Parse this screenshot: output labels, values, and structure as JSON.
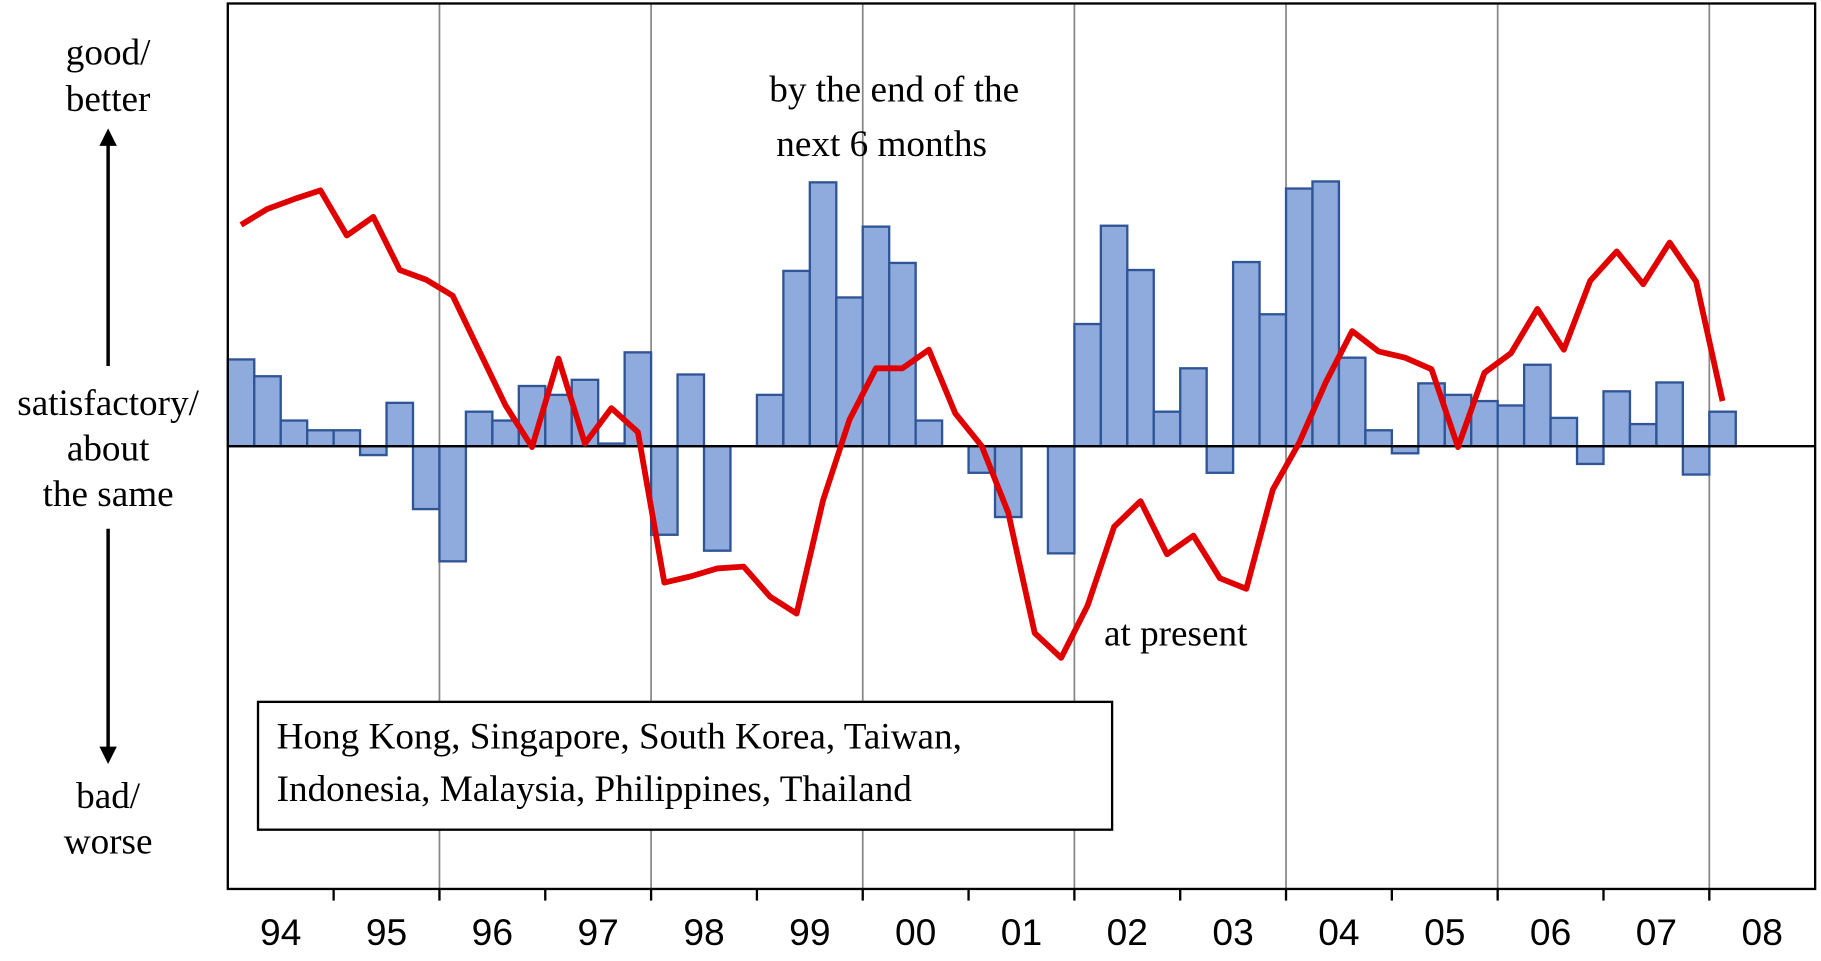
{
  "chart_data": {
    "type": "combo",
    "x": [
      1994.125,
      1994.375,
      1994.625,
      1994.875,
      1995.125,
      1995.375,
      1995.625,
      1995.875,
      1996.125,
      1996.375,
      1996.625,
      1996.875,
      1997.125,
      1997.375,
      1997.625,
      1997.875,
      1998.125,
      1998.375,
      1998.625,
      1998.875,
      1999.125,
      1999.375,
      1999.625,
      1999.875,
      2000.125,
      2000.375,
      2000.625,
      2000.875,
      2001.125,
      2001.375,
      2001.625,
      2001.875,
      2002.125,
      2002.375,
      2002.625,
      2002.875,
      2003.125,
      2003.375,
      2003.625,
      2003.875,
      2004.125,
      2004.375,
      2004.625,
      2004.875,
      2005.125,
      2005.375,
      2005.625,
      2005.875,
      2006.125,
      2006.375,
      2006.625,
      2006.875,
      2007.125,
      2007.375,
      2007.625,
      2007.875,
      2008.125,
      2008.375,
      2008.625,
      2008.875
    ],
    "series": [
      {
        "type": "bar",
        "color": "#8faadc",
        "edge_color": "#2f5597",
        "values": [
          9.8,
          7.9,
          2.9,
          1.8,
          1.8,
          -1.0,
          4.9,
          -7.1,
          -13.0,
          3.9,
          2.9,
          6.8,
          5.8,
          7.5,
          0.3,
          10.6,
          -10.0,
          8.1,
          -11.8,
          null,
          5.8,
          19.8,
          29.8,
          16.8,
          24.8,
          20.7,
          2.9,
          null,
          -3.0,
          -8.0,
          null,
          -12.1,
          13.8,
          24.9,
          19.9,
          3.9,
          8.8,
          -3.0,
          20.8,
          14.9,
          29.1,
          29.9,
          10.0,
          1.8,
          -0.8,
          7.1,
          5.8,
          5.1,
          4.6,
          9.2,
          3.2,
          -2.0,
          6.2,
          2.5,
          7.2,
          -3.2,
          3.9,
          null,
          null,
          null
        ]
      },
      {
        "type": "line",
        "color": "#e00000",
        "values": [
          25.0,
          26.8,
          27.9,
          28.9,
          23.8,
          25.9,
          19.9,
          18.8,
          17.0,
          10.8,
          4.6,
          -0.1,
          9.9,
          0.3,
          4.3,
          1.6,
          -15.4,
          -14.7,
          -13.8,
          -13.6,
          -17.0,
          -18.9,
          -6.1,
          3.0,
          8.8,
          8.8,
          10.9,
          3.7,
          0,
          -7.5,
          -21.1,
          -23.9,
          -18.0,
          -9.1,
          -6.2,
          -12.2,
          -10.1,
          -14.9,
          -16.1,
          -4.9,
          0.4,
          7.2,
          13.0,
          10.7,
          10.0,
          8.7,
          -0.1,
          8.3,
          10.5,
          15.5,
          10.9,
          18.7,
          22.0,
          18.3,
          23.0,
          18.6,
          5.1,
          null,
          null,
          null
        ]
      }
    ],
    "xlim": [
      1994,
      2009
    ],
    "xticks": [
      {
        "value": 1994,
        "label": "94"
      },
      {
        "value": 1995,
        "label": "95"
      },
      {
        "value": 1996,
        "label": "96"
      },
      {
        "value": 1997,
        "label": "97"
      },
      {
        "value": 1998,
        "label": "98"
      },
      {
        "value": 1999,
        "label": "99"
      },
      {
        "value": 2000,
        "label": "00"
      },
      {
        "value": 2001,
        "label": "01"
      },
      {
        "value": 2002,
        "label": "02"
      },
      {
        "value": 2003,
        "label": "03"
      },
      {
        "value": 2004,
        "label": "04"
      },
      {
        "value": 2005,
        "label": "05"
      },
      {
        "value": 2006,
        "label": "06"
      },
      {
        "value": 2007,
        "label": "07"
      },
      {
        "value": 2008,
        "label": "08"
      }
    ],
    "ylim": [
      -50,
      50
    ],
    "grid": true,
    "annotations": [
      {
        "lines": [
          "by the end of the",
          "next 6 months"
        ]
      },
      {
        "lines": [
          "at present"
        ]
      }
    ],
    "note": [
      "Hong Kong, Singapore, South Korea, Taiwan,",
      "Indonesia, Malaysia, Philippines, Thailand"
    ],
    "y_labels": {
      "top": [
        "good/",
        "better"
      ],
      "middle": [
        "satisfactory/",
        "about",
        "the same"
      ],
      "bottom": [
        "bad/",
        "worse"
      ]
    }
  }
}
